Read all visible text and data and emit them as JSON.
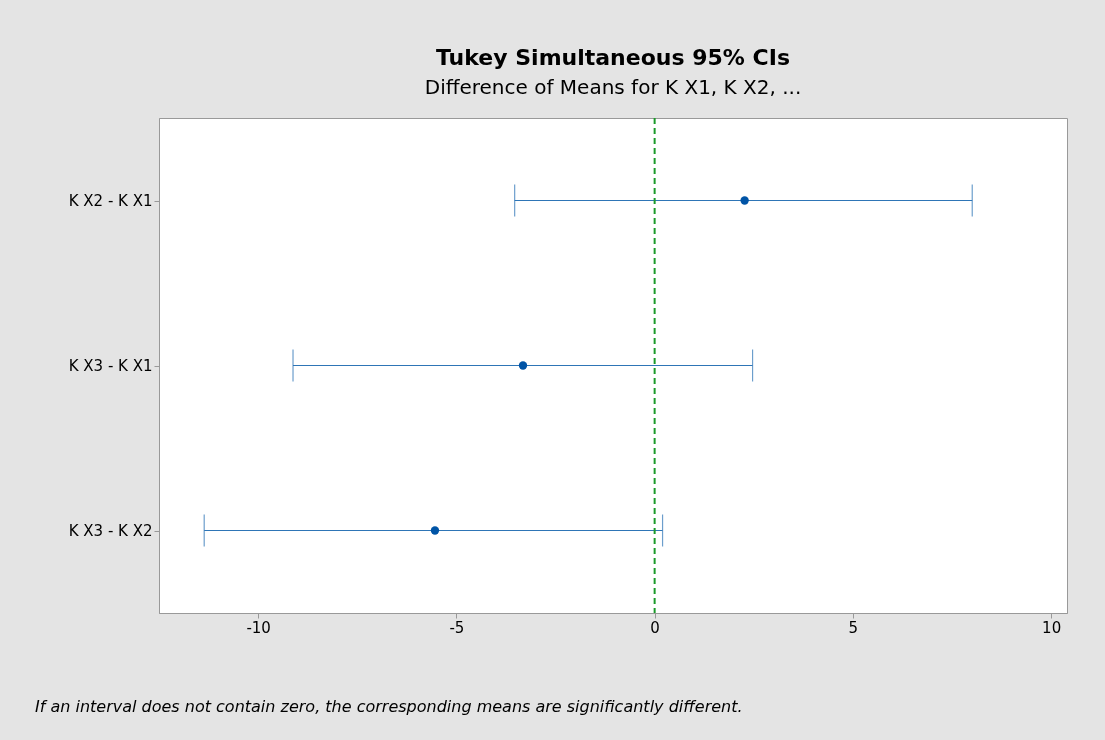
{
  "chart_data": {
    "type": "scatter",
    "title": "Tukey Simultaneous 95% CIs",
    "subtitle": "Difference of Means for K X1, K X2, ...",
    "categories": [
      "K X2 - K X1",
      "K X3 - K X1",
      "K X3 - K X2"
    ],
    "values": [
      2.27,
      -3.32,
      -5.54
    ],
    "errors": [
      [
        -3.53,
        8.01
      ],
      [
        -9.12,
        2.47
      ],
      [
        -11.36,
        0.2
      ]
    ],
    "color": "#0054a6",
    "xlim": [
      -12.5,
      10.4
    ],
    "xticks": [
      -10,
      -5,
      0,
      5,
      10
    ],
    "ref_lines": [
      {
        "axis": "x",
        "value": 0,
        "color": "#1a9a2a",
        "line_style": "dashed"
      }
    ],
    "grid": false,
    "marker": "circle",
    "orientation": "horizontal",
    "annotations": [
      "If an interval does not contain zero, the corresponding means are significantly different."
    ]
  }
}
